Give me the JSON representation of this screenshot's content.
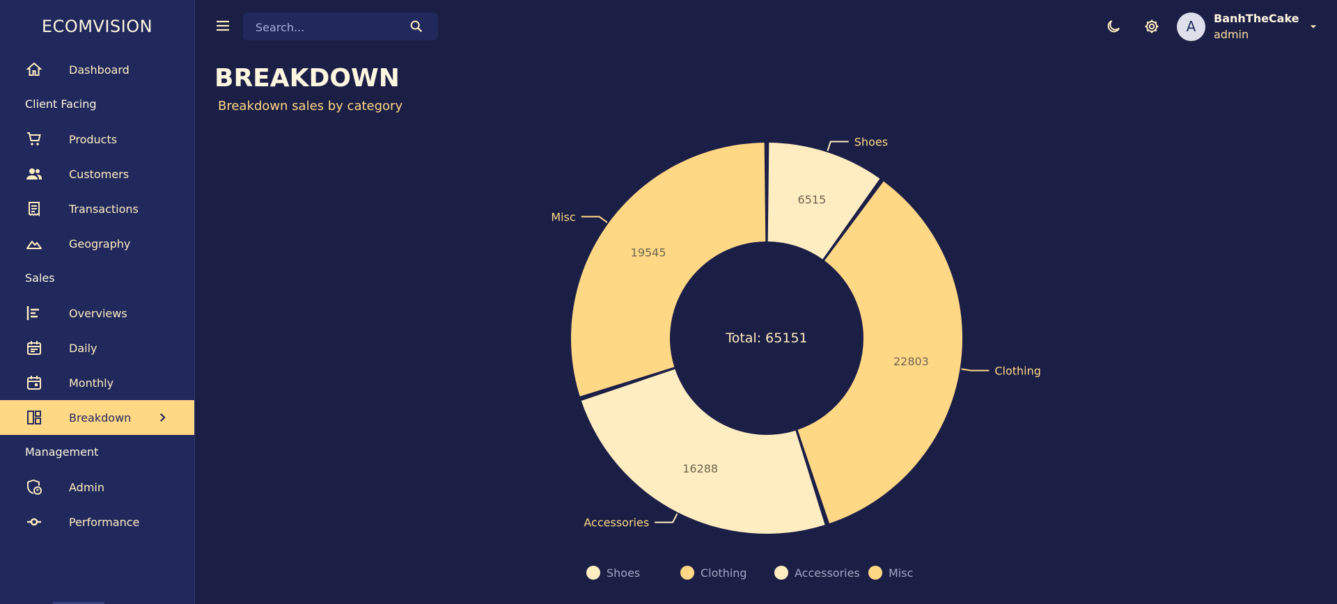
{
  "brand": "ECOMVISION",
  "search": {
    "placeholder": "Search..."
  },
  "user": {
    "name": "BanhTheCake",
    "role": "admin",
    "initial": "A"
  },
  "sidebar": {
    "items": [
      {
        "label": "Dashboard",
        "icon": "home-icon"
      },
      {
        "section": "Client Facing"
      },
      {
        "label": "Products",
        "icon": "shopping-cart-icon"
      },
      {
        "label": "Customers",
        "icon": "groups-icon"
      },
      {
        "label": "Transactions",
        "icon": "receipt-icon"
      },
      {
        "label": "Geography",
        "icon": "terrain-icon"
      },
      {
        "section": "Sales"
      },
      {
        "label": "Overviews",
        "icon": "bar-chart-icon"
      },
      {
        "label": "Daily",
        "icon": "calendar-icon"
      },
      {
        "label": "Monthly",
        "icon": "calendar-month-icon"
      },
      {
        "label": "Breakdown",
        "icon": "dashboard-layout-icon",
        "active": true
      },
      {
        "section": "Management"
      },
      {
        "label": "Admin",
        "icon": "admin-shield-icon"
      },
      {
        "label": "Performance",
        "icon": "commit-icon"
      }
    ]
  },
  "page": {
    "title": "BREAKDOWN",
    "subtitle": "Breakdown sales by category"
  },
  "colors": {
    "background": "#1b1f45",
    "sidebar": "#21295c",
    "accent": "#ffd886",
    "slice_light": "#ffedc2",
    "slice_dark": "#ffd886"
  },
  "chart_data": {
    "type": "pie",
    "donut": true,
    "center_text": "Total: 65151",
    "total": 65151,
    "slices": [
      {
        "label": "Shoes",
        "value": 6515,
        "color": "#ffedc2"
      },
      {
        "label": "Clothing",
        "value": 22803,
        "color": "#ffd886"
      },
      {
        "label": "Accessories",
        "value": 16288,
        "color": "#ffedc2"
      },
      {
        "label": "Misc",
        "value": 19545,
        "color": "#ffd886"
      }
    ],
    "legend_position": "bottom"
  }
}
